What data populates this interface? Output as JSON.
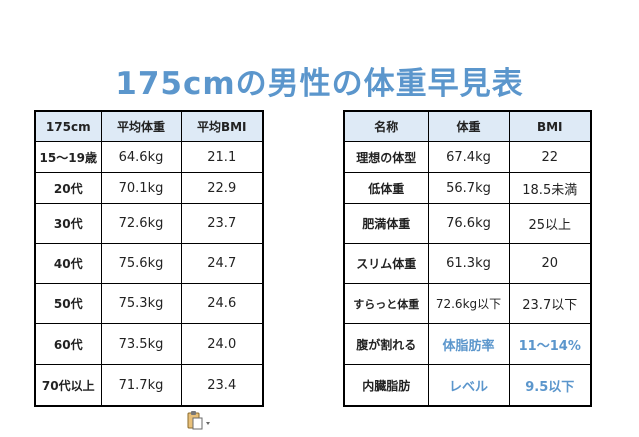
{
  "title": "175cmの男性の体重早見表",
  "age_table": {
    "headers": [
      "175cm",
      "平均体重",
      "平均BMI"
    ],
    "rows": [
      [
        "15〜19歳",
        "64.6kg",
        "21.1"
      ],
      [
        "20代",
        "70.1kg",
        "22.9"
      ],
      [
        "30代",
        "72.6kg",
        "23.7"
      ],
      [
        "40代",
        "75.6kg",
        "24.7"
      ],
      [
        "50代",
        "75.3kg",
        "24.6"
      ],
      [
        "60代",
        "73.5kg",
        "24.0"
      ],
      [
        "70代以上",
        "71.7kg",
        "23.4"
      ]
    ]
  },
  "ref_table": {
    "headers": [
      "名称",
      "体重",
      "BMI"
    ],
    "rows": [
      [
        "理想の体型",
        "67.4kg",
        "22"
      ],
      [
        "低体重",
        "56.7kg",
        "18.5未満"
      ],
      [
        "肥満体重",
        "76.6kg",
        "25以上"
      ],
      [
        "スリム体重",
        "61.3kg",
        "20"
      ],
      [
        "すらっと体重",
        "72.6kg以下",
        "23.7以下"
      ],
      [
        "腹が割れる",
        "体脂肪率",
        "11〜14%"
      ],
      [
        "内臓脂肪",
        "レベル",
        "9.5以下"
      ]
    ]
  },
  "colors": {
    "title": "#5b96cc",
    "header_bg": "#deeaf6",
    "highlight_text": "#5b96cc"
  },
  "icons": {
    "paste_options": "clipboard-icon"
  }
}
